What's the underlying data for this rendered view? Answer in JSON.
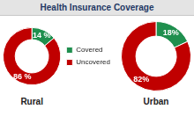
{
  "title": "Health Insurance Coverage",
  "chart_data": [
    {
      "type": "doughnut",
      "title": "Rural",
      "categories": [
        "Covered",
        "Uncovered"
      ],
      "values": [
        14,
        86
      ],
      "value_labels": [
        "14 %",
        "86 %"
      ],
      "colors": [
        "#1f8f4e",
        "#c00000"
      ],
      "data_labels": true,
      "legend": "right"
    },
    {
      "type": "doughnut",
      "title": "Urban",
      "categories": [
        "Covered",
        "Uncovered"
      ],
      "values": [
        18,
        82
      ],
      "value_labels": [
        "18%",
        "82%"
      ],
      "colors": [
        "#1f8f4e",
        "#c00000"
      ],
      "data_labels": true
    }
  ]
}
